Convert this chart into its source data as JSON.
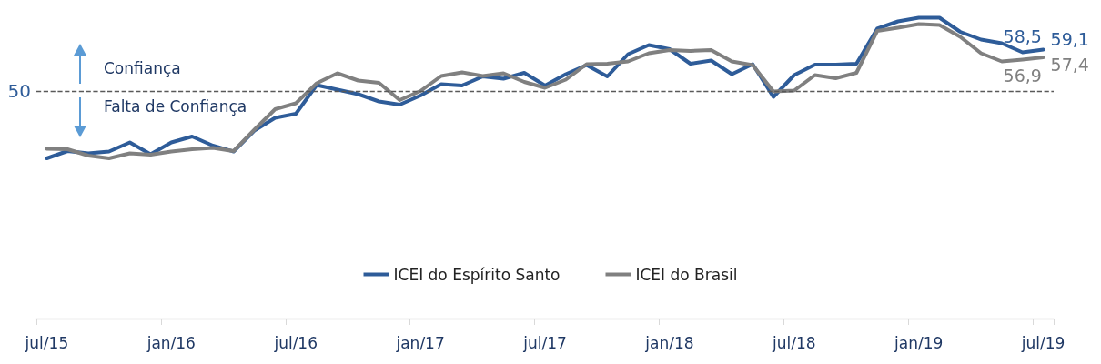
{
  "chart_data": {
    "type": "line",
    "categories": [
      "jul/15",
      null,
      null,
      null,
      null,
      null,
      "jan/16",
      null,
      null,
      null,
      null,
      null,
      "jul/16",
      null,
      null,
      null,
      null,
      null,
      "jan/17",
      null,
      null,
      null,
      null,
      null,
      "jul/17",
      null,
      null,
      null,
      null,
      null,
      "jan/18",
      null,
      null,
      null,
      null,
      null,
      "jul/18",
      null,
      null,
      null,
      null,
      null,
      "jan/19",
      null,
      null,
      null,
      null,
      null,
      "jul/19"
    ],
    "series": [
      {
        "name": "ICEI do Espírito Santo",
        "color": "#2e5c99",
        "values": [
          35.2,
          36.8,
          36.3,
          36.7,
          38.7,
          36.1,
          38.7,
          40.0,
          38.0,
          36.7,
          41.3,
          44.1,
          45.0,
          51.3,
          50.3,
          49.3,
          47.7,
          47.0,
          49.0,
          51.5,
          51.2,
          53.2,
          52.7,
          54.0,
          51.2,
          53.7,
          55.7,
          53.2,
          58.1,
          60.1,
          59.2,
          56.0,
          56.7,
          53.7,
          55.9,
          48.7,
          53.5,
          55.8,
          55.8,
          56.0,
          63.7,
          65.3,
          66.1,
          66.1,
          63.0,
          61.3,
          60.5,
          58.5,
          59.1
        ],
        "value_labels": [
          null,
          null,
          null,
          null,
          null,
          null,
          null,
          null,
          null,
          null,
          null,
          null,
          null,
          null,
          null,
          null,
          null,
          null,
          null,
          null,
          null,
          null,
          null,
          null,
          null,
          null,
          null,
          null,
          null,
          null,
          null,
          null,
          null,
          null,
          null,
          null,
          null,
          null,
          null,
          null,
          null,
          null,
          null,
          null,
          null,
          null,
          null,
          "58,5",
          "59,1"
        ]
      },
      {
        "name": "ICEI do Brasil",
        "color": "#808080",
        "values": [
          37.3,
          37.2,
          35.8,
          35.2,
          36.3,
          36.0,
          36.7,
          37.2,
          37.5,
          36.8,
          41.5,
          46.0,
          47.3,
          51.7,
          53.9,
          52.3,
          51.8,
          48.0,
          50.0,
          53.3,
          54.1,
          53.3,
          53.9,
          52.0,
          50.7,
          52.5,
          55.9,
          56.0,
          56.5,
          58.3,
          59.0,
          58.8,
          59.0,
          56.5,
          55.7,
          49.9,
          50.1,
          53.5,
          52.8,
          54.0,
          63.2,
          63.9,
          64.7,
          64.5,
          61.9,
          58.3,
          56.5,
          56.9,
          57.4
        ],
        "value_labels": [
          null,
          null,
          null,
          null,
          null,
          null,
          null,
          null,
          null,
          null,
          null,
          null,
          null,
          null,
          null,
          null,
          null,
          null,
          null,
          null,
          null,
          null,
          null,
          null,
          null,
          null,
          null,
          null,
          null,
          null,
          null,
          null,
          null,
          null,
          null,
          null,
          null,
          null,
          null,
          null,
          null,
          null,
          null,
          null,
          null,
          null,
          null,
          "56,9",
          "57,4"
        ]
      }
    ],
    "ref_lines": [
      {
        "axis": "y",
        "value": 50,
        "label": "50",
        "color": "#595959",
        "line_style": "dashed"
      }
    ],
    "annotations": [
      "Confiança",
      "Falta de Confiança"
    ],
    "legend": "bottom",
    "grid": false,
    "marker": "none",
    "line_style": "solid"
  }
}
